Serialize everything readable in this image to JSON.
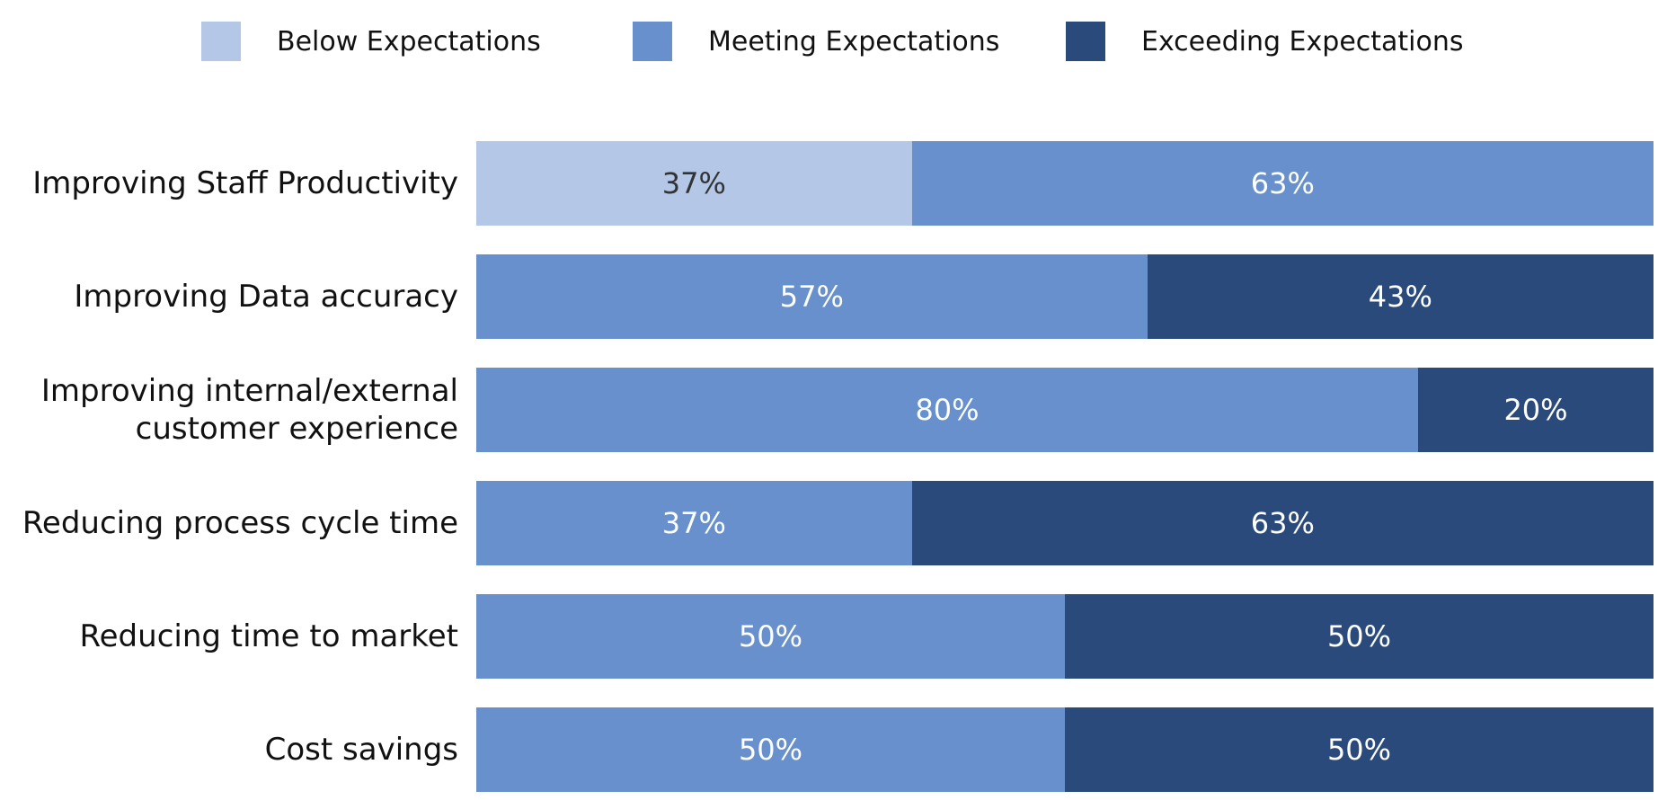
{
  "chart_data": {
    "type": "bar",
    "orientation": "horizontal",
    "stacked": true,
    "percent": true,
    "legend_position": "top",
    "grid": false,
    "xlim": [
      0,
      100
    ],
    "categories": [
      "Improving Staff Productivity",
      "Improving Data accuracy",
      "Improving internal/external customer experience",
      "Reducing process cycle time",
      "Reducing time to market",
      "Cost savings"
    ],
    "series": [
      {
        "name": "Below Expectations",
        "color": "#b4c7e7",
        "label_color": "#333333",
        "values": [
          37,
          0,
          0,
          0,
          0,
          0
        ]
      },
      {
        "name": "Meeting Expectations",
        "color": "#6890cc",
        "label_color": "#ffffff",
        "values": [
          63,
          57,
          80,
          37,
          50,
          50
        ]
      },
      {
        "name": "Exceeding Expectations",
        "color": "#2b4a7c",
        "label_color": "#ffffff",
        "values": [
          0,
          43,
          20,
          63,
          50,
          50
        ]
      }
    ]
  }
}
